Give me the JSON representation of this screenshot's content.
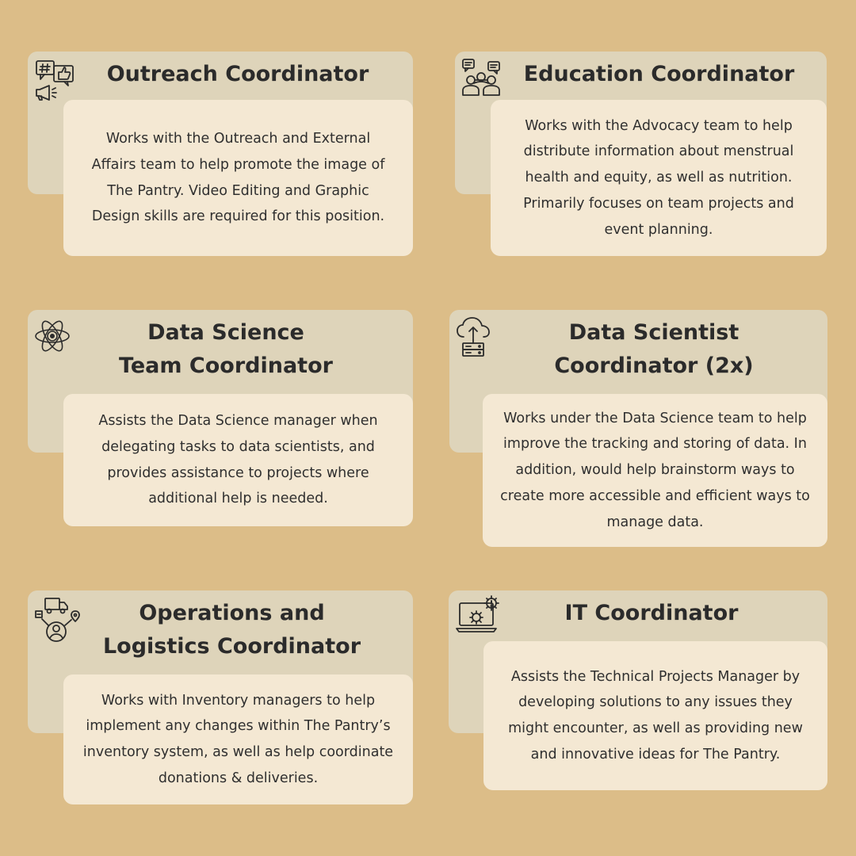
{
  "roles": [
    {
      "title": "Outreach Coordinator",
      "description": "Works with the Outreach and External Affairs team to help promote the image of The Pantry. Video Editing and Graphic Design skills are required for this position.",
      "icon": "social-media-megaphone-icon"
    },
    {
      "title": "Education Coordinator",
      "description": "Works with the Advocacy team to help distribute information about menstrual health and equity, as well as nutrition. Primarily focuses on team projects and event planning.",
      "icon": "discussion-group-icon"
    },
    {
      "title": "Data Science\nTeam Coordinator",
      "description": "Assists the Data Science manager when delegating tasks to data scientists, and provides assistance to projects where additional help is needed.",
      "icon": "atom-icon"
    },
    {
      "title": "Data Scientist\nCoordinator (2x)",
      "description": "Works under the Data Science team to help improve the tracking and storing of data. In addition, would help brainstorm ways to create more accessible and efficient ways to manage data.",
      "icon": "cloud-upload-server-icon"
    },
    {
      "title": "Operations and\nLogistics Coordinator",
      "description": "Works with Inventory managers to help implement any changes within The Pantry’s inventory system, as well as help coordinate donations & deliveries.",
      "icon": "logistics-network-icon"
    },
    {
      "title": "IT Coordinator",
      "description": "Assists the Technical Projects Manager by developing solutions to any issues they might encounter, as well as providing new and innovative ideas for The Pantry.",
      "icon": "laptop-settings-icon"
    }
  ]
}
